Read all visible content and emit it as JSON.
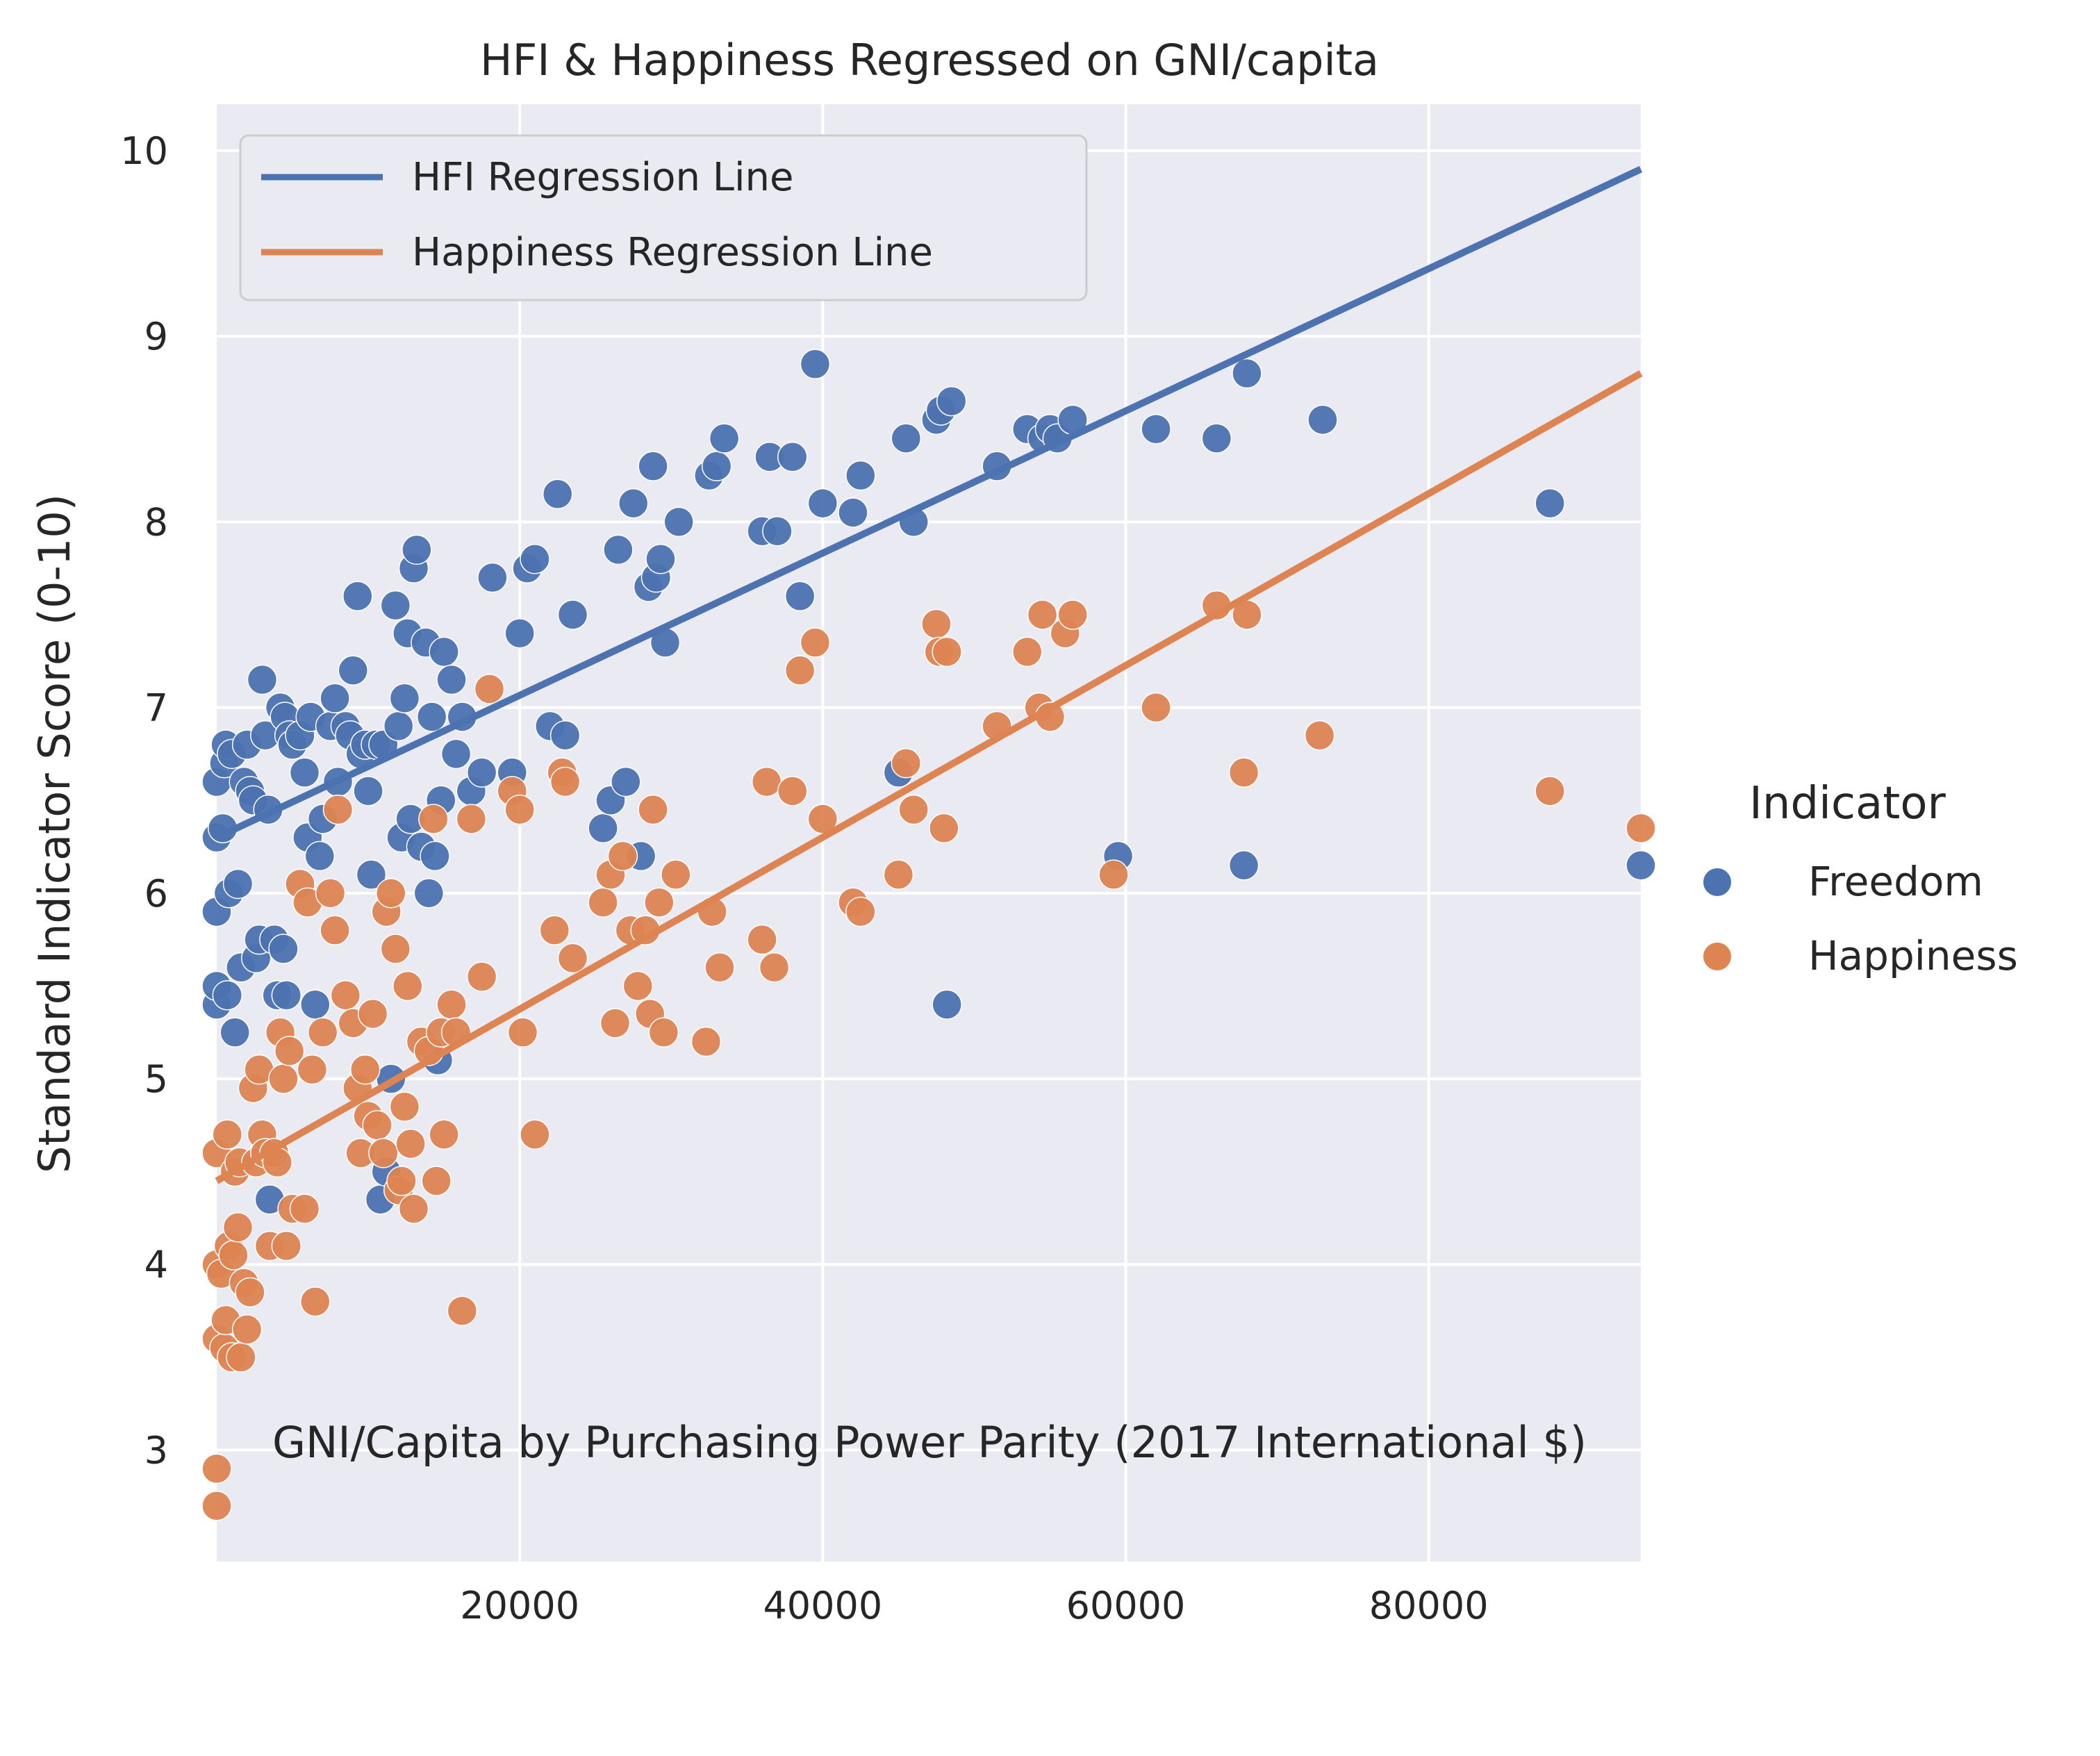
{
  "chart_data": {
    "type": "scatter",
    "title": "HFI & Happiness Regressed on GNI/capita",
    "xlabel": "GNI/Capita by Purchasing Power Parity (2017 International $)",
    "ylabel": "Standard Indicator Score (0-10)",
    "xlim": [
      0,
      94000
    ],
    "ylim": [
      2.4,
      10.25
    ],
    "xticks": [
      20000,
      40000,
      60000,
      80000
    ],
    "yticks": [
      3,
      4,
      5,
      6,
      7,
      8,
      9,
      10
    ],
    "grid": true,
    "line_legend": {
      "placement": "top-left",
      "entries": [
        "HFI Regression Line",
        "Happiness Regression Line"
      ]
    },
    "hue_legend": {
      "title": "Indicator",
      "placement": "right",
      "entries": [
        "Freedom",
        "Happiness"
      ]
    },
    "colors": {
      "Freedom": "#4c72b0",
      "Happiness": "#dd8452",
      "background": "#eaeaf2",
      "grid": "#ffffff"
    },
    "regression_lines": [
      {
        "name": "HFI Regression Line",
        "color": "#4c72b0",
        "x": [
          0,
          94000
        ],
        "y": [
          6.3,
          9.9
        ]
      },
      {
        "name": "Happiness Regression Line",
        "color": "#dd8452",
        "x": [
          0,
          94000
        ],
        "y": [
          4.45,
          8.8
        ]
      }
    ],
    "series": [
      {
        "name": "Freedom",
        "color": "#4c72b0",
        "points": [
          [
            0,
            6.3
          ],
          [
            0,
            6.6
          ],
          [
            0,
            5.9
          ],
          [
            0,
            5.4
          ],
          [
            0,
            5.5
          ],
          [
            400,
            6.35
          ],
          [
            500,
            6.7
          ],
          [
            600,
            6.8
          ],
          [
            700,
            5.45
          ],
          [
            800,
            6.0
          ],
          [
            1000,
            6.75
          ],
          [
            1200,
            5.25
          ],
          [
            1400,
            6.05
          ],
          [
            1600,
            5.6
          ],
          [
            1800,
            6.6
          ],
          [
            2000,
            6.8
          ],
          [
            2200,
            6.55
          ],
          [
            2400,
            6.5
          ],
          [
            2600,
            5.65
          ],
          [
            2800,
            5.75
          ],
          [
            3000,
            7.15
          ],
          [
            3200,
            6.85
          ],
          [
            3400,
            6.45
          ],
          [
            3500,
            4.35
          ],
          [
            3800,
            5.75
          ],
          [
            4000,
            5.45
          ],
          [
            4200,
            7.0
          ],
          [
            4400,
            5.7
          ],
          [
            4500,
            6.95
          ],
          [
            4600,
            5.45
          ],
          [
            4800,
            6.85
          ],
          [
            5000,
            6.8
          ],
          [
            5500,
            6.85
          ],
          [
            5800,
            6.65
          ],
          [
            6000,
            6.3
          ],
          [
            6200,
            6.95
          ],
          [
            6500,
            5.4
          ],
          [
            6800,
            6.2
          ],
          [
            7000,
            6.4
          ],
          [
            7500,
            6.9
          ],
          [
            7800,
            7.05
          ],
          [
            8000,
            6.6
          ],
          [
            8500,
            6.9
          ],
          [
            8800,
            6.85
          ],
          [
            9000,
            7.2
          ],
          [
            9300,
            7.6
          ],
          [
            9500,
            6.75
          ],
          [
            9800,
            6.8
          ],
          [
            10000,
            6.55
          ],
          [
            10200,
            6.1
          ],
          [
            10500,
            6.8
          ],
          [
            10800,
            4.35
          ],
          [
            11000,
            6.8
          ],
          [
            11200,
            4.5
          ],
          [
            11500,
            5.0
          ],
          [
            11800,
            7.55
          ],
          [
            12000,
            6.9
          ],
          [
            12200,
            6.3
          ],
          [
            12400,
            7.05
          ],
          [
            12600,
            7.4
          ],
          [
            12800,
            6.4
          ],
          [
            13000,
            7.75
          ],
          [
            13200,
            7.85
          ],
          [
            13500,
            6.25
          ],
          [
            13800,
            7.35
          ],
          [
            14000,
            6.0
          ],
          [
            14200,
            6.95
          ],
          [
            14400,
            6.2
          ],
          [
            14600,
            5.1
          ],
          [
            14800,
            6.5
          ],
          [
            15000,
            7.3
          ],
          [
            15500,
            7.15
          ],
          [
            15800,
            6.75
          ],
          [
            16200,
            6.95
          ],
          [
            16800,
            6.55
          ],
          [
            17500,
            6.65
          ],
          [
            18200,
            7.7
          ],
          [
            19500,
            6.65
          ],
          [
            20000,
            7.4
          ],
          [
            20500,
            7.75
          ],
          [
            21000,
            7.8
          ],
          [
            22000,
            6.9
          ],
          [
            22500,
            8.15
          ],
          [
            23000,
            6.85
          ],
          [
            23500,
            7.5
          ],
          [
            25500,
            6.35
          ],
          [
            26000,
            6.5
          ],
          [
            26500,
            7.85
          ],
          [
            27000,
            6.6
          ],
          [
            27500,
            8.1
          ],
          [
            28000,
            6.2
          ],
          [
            28500,
            7.65
          ],
          [
            28800,
            8.3
          ],
          [
            29000,
            7.7
          ],
          [
            29300,
            7.8
          ],
          [
            29600,
            7.35
          ],
          [
            30500,
            8.0
          ],
          [
            32500,
            8.25
          ],
          [
            33000,
            8.3
          ],
          [
            33500,
            8.45
          ],
          [
            36000,
            7.95
          ],
          [
            36500,
            8.35
          ],
          [
            37000,
            7.95
          ],
          [
            38000,
            8.35
          ],
          [
            38500,
            7.6
          ],
          [
            39500,
            8.85
          ],
          [
            40000,
            8.1
          ],
          [
            42000,
            8.05
          ],
          [
            42500,
            8.25
          ],
          [
            45000,
            6.65
          ],
          [
            45500,
            8.45
          ],
          [
            46000,
            8.0
          ],
          [
            47500,
            8.55
          ],
          [
            47800,
            8.6
          ],
          [
            48200,
            5.4
          ],
          [
            48500,
            8.65
          ],
          [
            51500,
            8.3
          ],
          [
            53500,
            8.5
          ],
          [
            54500,
            8.45
          ],
          [
            55000,
            8.5
          ],
          [
            55500,
            8.45
          ],
          [
            56500,
            8.55
          ],
          [
            59500,
            6.2
          ],
          [
            62000,
            8.5
          ],
          [
            66000,
            8.45
          ],
          [
            67800,
            6.15
          ],
          [
            68000,
            8.8
          ],
          [
            73000,
            8.55
          ],
          [
            88000,
            8.1
          ],
          [
            94000,
            6.15
          ]
        ]
      },
      {
        "name": "Happiness",
        "color": "#dd8452",
        "points": [
          [
            0,
            2.7
          ],
          [
            0,
            2.9
          ],
          [
            0,
            3.6
          ],
          [
            0,
            4.0
          ],
          [
            0,
            4.6
          ],
          [
            300,
            3.95
          ],
          [
            500,
            3.55
          ],
          [
            600,
            3.7
          ],
          [
            700,
            4.7
          ],
          [
            800,
            4.1
          ],
          [
            1000,
            3.5
          ],
          [
            1100,
            4.05
          ],
          [
            1200,
            4.5
          ],
          [
            1400,
            4.2
          ],
          [
            1500,
            4.55
          ],
          [
            1600,
            3.5
          ],
          [
            1800,
            3.9
          ],
          [
            2000,
            3.65
          ],
          [
            2200,
            3.85
          ],
          [
            2400,
            4.95
          ],
          [
            2600,
            4.55
          ],
          [
            2800,
            5.05
          ],
          [
            3000,
            4.7
          ],
          [
            3200,
            4.6
          ],
          [
            3500,
            4.1
          ],
          [
            3800,
            4.6
          ],
          [
            4000,
            4.55
          ],
          [
            4200,
            5.25
          ],
          [
            4400,
            5.0
          ],
          [
            4600,
            4.1
          ],
          [
            4800,
            5.15
          ],
          [
            5000,
            4.3
          ],
          [
            5500,
            6.05
          ],
          [
            5800,
            4.3
          ],
          [
            6000,
            5.95
          ],
          [
            6300,
            5.05
          ],
          [
            6500,
            3.8
          ],
          [
            7000,
            5.25
          ],
          [
            7500,
            6.0
          ],
          [
            7800,
            5.8
          ],
          [
            8000,
            6.45
          ],
          [
            8500,
            5.45
          ],
          [
            9000,
            5.3
          ],
          [
            9300,
            4.95
          ],
          [
            9500,
            4.6
          ],
          [
            9800,
            5.05
          ],
          [
            10000,
            4.8
          ],
          [
            10300,
            5.35
          ],
          [
            10600,
            4.75
          ],
          [
            11000,
            4.6
          ],
          [
            11200,
            5.9
          ],
          [
            11500,
            6.0
          ],
          [
            11800,
            5.7
          ],
          [
            12000,
            4.4
          ],
          [
            12200,
            4.45
          ],
          [
            12400,
            4.85
          ],
          [
            12600,
            5.5
          ],
          [
            12800,
            4.65
          ],
          [
            13000,
            4.3
          ],
          [
            13500,
            5.2
          ],
          [
            14000,
            5.15
          ],
          [
            14300,
            6.4
          ],
          [
            14500,
            4.45
          ],
          [
            14800,
            5.25
          ],
          [
            15000,
            4.7
          ],
          [
            15500,
            5.4
          ],
          [
            15800,
            5.25
          ],
          [
            16200,
            3.75
          ],
          [
            16800,
            6.4
          ],
          [
            17500,
            5.55
          ],
          [
            18000,
            7.1
          ],
          [
            19500,
            6.55
          ],
          [
            20000,
            6.45
          ],
          [
            20200,
            5.25
          ],
          [
            21000,
            4.7
          ],
          [
            22300,
            5.8
          ],
          [
            22800,
            6.65
          ],
          [
            23000,
            6.6
          ],
          [
            23500,
            5.65
          ],
          [
            25500,
            5.95
          ],
          [
            26000,
            6.1
          ],
          [
            26300,
            5.3
          ],
          [
            26800,
            6.2
          ],
          [
            27300,
            5.8
          ],
          [
            27800,
            5.5
          ],
          [
            28300,
            5.8
          ],
          [
            28600,
            5.35
          ],
          [
            28800,
            6.45
          ],
          [
            29200,
            5.95
          ],
          [
            29500,
            5.25
          ],
          [
            30300,
            6.1
          ],
          [
            32300,
            5.2
          ],
          [
            32700,
            5.9
          ],
          [
            33200,
            5.6
          ],
          [
            36000,
            5.75
          ],
          [
            36300,
            6.6
          ],
          [
            36800,
            5.6
          ],
          [
            38000,
            6.55
          ],
          [
            38500,
            7.2
          ],
          [
            39500,
            7.35
          ],
          [
            40000,
            6.4
          ],
          [
            42000,
            5.95
          ],
          [
            42500,
            5.9
          ],
          [
            45000,
            6.1
          ],
          [
            45500,
            6.7
          ],
          [
            46000,
            6.45
          ],
          [
            47500,
            7.45
          ],
          [
            47700,
            7.3
          ],
          [
            48000,
            6.35
          ],
          [
            48200,
            7.3
          ],
          [
            51500,
            6.9
          ],
          [
            53500,
            7.3
          ],
          [
            54300,
            7.0
          ],
          [
            54500,
            7.5
          ],
          [
            55000,
            6.95
          ],
          [
            56000,
            7.4
          ],
          [
            56500,
            7.5
          ],
          [
            59200,
            6.1
          ],
          [
            62000,
            7.0
          ],
          [
            66000,
            7.55
          ],
          [
            67800,
            6.65
          ],
          [
            68000,
            7.5
          ],
          [
            72800,
            6.85
          ],
          [
            88000,
            6.55
          ],
          [
            94000,
            6.35
          ]
        ]
      }
    ]
  }
}
